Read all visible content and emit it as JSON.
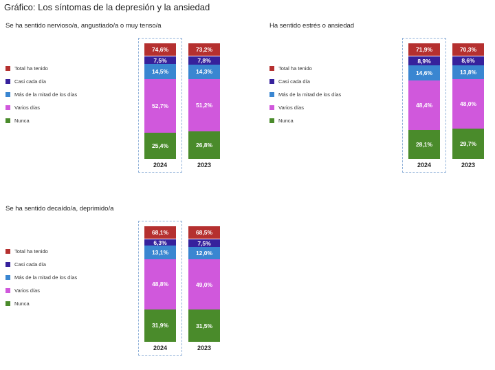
{
  "title": "Gráfico: Los síntomas de la depresión y la ansiedad",
  "colors": {
    "Total ha tenido": "#b5302f",
    "Casi cada día": "#36219c",
    "Más de la mitad de los días": "#3a86d1",
    "Varios días": "#d058dc",
    "Nunca": "#4a8b2b"
  },
  "chart_data": [
    {
      "type": "bar",
      "stacked": true,
      "title": "Se ha sentido nervioso/a, angustiado/a o muy tenso/a",
      "categories": [
        "2024",
        "2023"
      ],
      "highlight": "2024",
      "legend": [
        "Total ha tenido",
        "Casi cada día",
        "Más de la mitad de los días",
        "Varios días",
        "Nunca"
      ],
      "total": {
        "name": "Total ha tenido",
        "values": [
          "74,6%",
          "73,2%"
        ]
      },
      "series": [
        {
          "name": "Casi cada día",
          "values": [
            "7,5%",
            "7,8%"
          ]
        },
        {
          "name": "Más de la mitad de los días",
          "values": [
            "14,5%",
            "14,3%"
          ]
        },
        {
          "name": "Varios días",
          "values": [
            "52,7%",
            "51,2%"
          ]
        },
        {
          "name": "Nunca",
          "values": [
            "25,4%",
            "26,8%"
          ]
        }
      ]
    },
    {
      "type": "bar",
      "stacked": true,
      "title": "Ha sentido estrés o ansiedad",
      "categories": [
        "2024",
        "2023"
      ],
      "highlight": "2024",
      "legend": [
        "Total ha tenido",
        "Casi cada día",
        "Más de la mitad de los días",
        "Varios días",
        "Nunca"
      ],
      "total": {
        "name": "Total ha tenido",
        "values": [
          "71,9%",
          "70,3%"
        ]
      },
      "series": [
        {
          "name": "Casi cada día",
          "values": [
            "8,9%",
            "8,6%"
          ]
        },
        {
          "name": "Más de la mitad de los días",
          "values": [
            "14,6%",
            "13,8%"
          ]
        },
        {
          "name": "Varios días",
          "values": [
            "48,4%",
            "48,0%"
          ]
        },
        {
          "name": "Nunca",
          "values": [
            "28,1%",
            "29,7%"
          ]
        }
      ]
    },
    {
      "type": "bar",
      "stacked": true,
      "title": "Se ha sentido decaído/a, deprimido/a",
      "categories": [
        "2024",
        "2023"
      ],
      "highlight": "2024",
      "legend": [
        "Total ha tenido",
        "Casi cada día",
        "Más de la mitad de los días",
        "Varios días",
        "Nunca"
      ],
      "total": {
        "name": "Total ha tenido",
        "values": [
          "68,1%",
          "68,5%"
        ]
      },
      "series": [
        {
          "name": "Casi cada día",
          "values": [
            "6,3%",
            "7,5%"
          ]
        },
        {
          "name": "Más de la mitad de los días",
          "values": [
            "13,1%",
            "12,0%"
          ]
        },
        {
          "name": "Varios días",
          "values": [
            "48,8%",
            "49,0%"
          ]
        },
        {
          "name": "Nunca",
          "values": [
            "31,9%",
            "31,5%"
          ]
        }
      ]
    }
  ]
}
